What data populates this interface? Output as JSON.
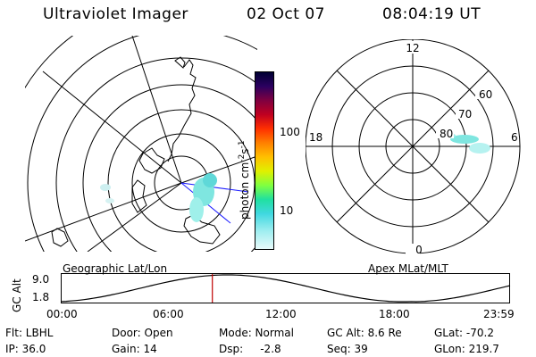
{
  "header": {
    "title": "Ultraviolet Imager",
    "date": "02 Oct 07",
    "time": "08:04:19 UT"
  },
  "panels": {
    "left_label": "Geographic Lat/Lon",
    "right_label": "Apex MLat/MLT"
  },
  "colorbar": {
    "label_main": "photon cm",
    "label_exp1": "-2",
    "label_mid": "s",
    "label_exp2": "-1",
    "tick_100": "100",
    "tick_10": "10"
  },
  "polar_mlt": {
    "top": "12",
    "bottom": "0",
    "left": "18",
    "right": "6",
    "lat_60": "60",
    "lat_70": "70",
    "lat_80": "80"
  },
  "altitude_plot": {
    "ylabel": "GC Alt",
    "ymax": "9.0",
    "ymin": "1.8",
    "x_ticks": [
      "00:00",
      "06:00",
      "12:00",
      "18:00",
      "23:59"
    ],
    "marker_time": "08:04"
  },
  "info": {
    "flt": "Flt: LBHL",
    "ip": "IP: 36.0",
    "door": "Door: Open",
    "gain": "Gain: 14",
    "mode": "Mode: Normal",
    "dsp": "Dsp:     -2.8",
    "gcalt": "GC Alt: 8.6 Re",
    "seq": "Seq: 39",
    "glat": "GLat: -70.2",
    "glon": "GLon: 219.7"
  },
  "colors": {
    "aurora": "#7fe6e0",
    "marker": "#c00000"
  }
}
